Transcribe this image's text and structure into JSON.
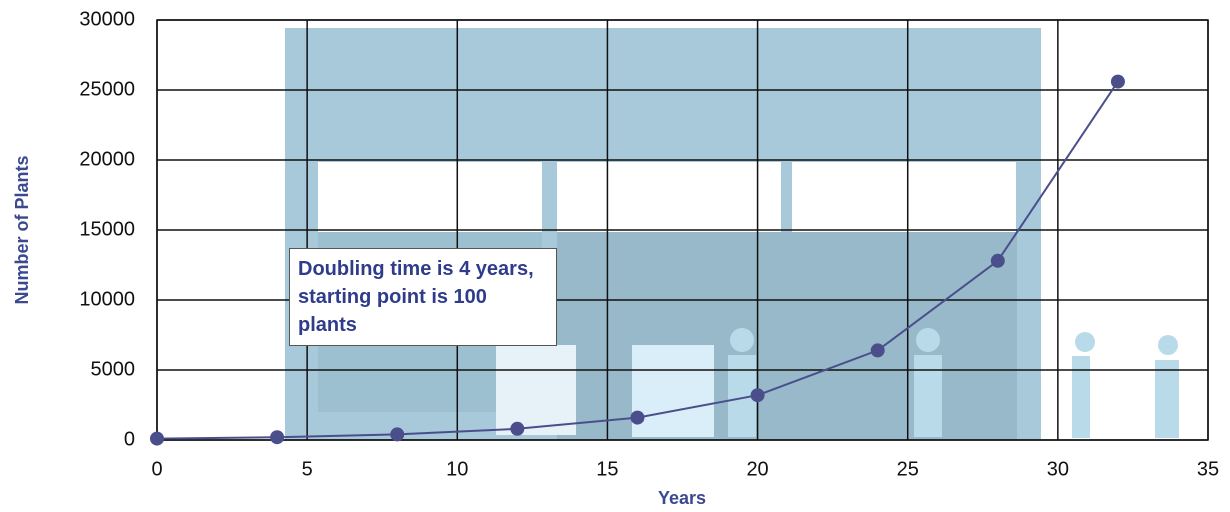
{
  "chart_data": {
    "type": "line",
    "x_label": "Years",
    "y_label": "Number of Plants",
    "annotation": "Doubling time is 4 years, starting point is 100 plants",
    "x": [
      0,
      4,
      8,
      12,
      16,
      20,
      24,
      28,
      32
    ],
    "series": [
      {
        "name": "Number of Plants",
        "color": "#4a4f8c",
        "values": [
          100,
          200,
          400,
          800,
          1600,
          3200,
          6400,
          12800,
          25600
        ]
      }
    ],
    "xlim": [
      0,
      35
    ],
    "xticks": [
      0,
      5,
      10,
      15,
      20,
      25,
      30,
      35
    ],
    "ylim": [
      0,
      30000
    ],
    "yticks": [
      0,
      5000,
      10000,
      15000,
      20000,
      25000,
      30000
    ],
    "grid": true
  }
}
